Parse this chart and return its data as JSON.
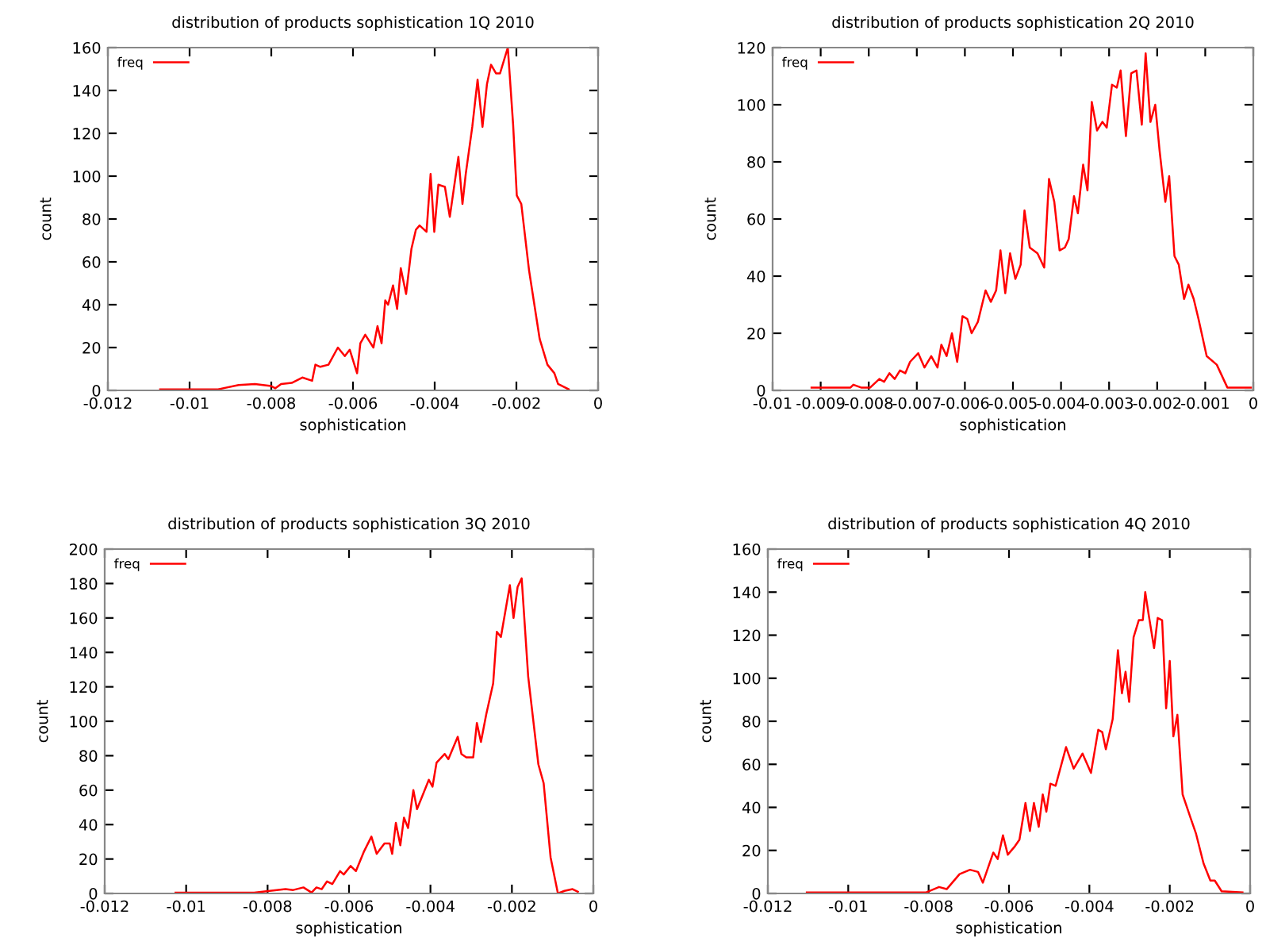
{
  "chart_data": [
    {
      "type": "line",
      "title": "distribution of products sophistication 1Q 2010",
      "xlabel": "sophistication",
      "ylabel": "count",
      "xlim": [
        -0.012,
        0
      ],
      "ylim": [
        0,
        160
      ],
      "xticks": [
        -0.012,
        -0.01,
        -0.008,
        -0.006,
        -0.004,
        -0.002,
        0
      ],
      "yticks": [
        0,
        20,
        40,
        60,
        80,
        100,
        120,
        140,
        160
      ],
      "legend": "top left",
      "grid": false,
      "series": [
        {
          "name": "freq",
          "color": "#ff0000",
          "x": [
            -0.01072,
            -0.0093,
            -0.0088,
            -0.0084,
            -0.008,
            -0.0079,
            -0.00776,
            -0.0075,
            -0.00724,
            -0.007,
            -0.00692,
            -0.0068,
            -0.0066,
            -0.00637,
            -0.0062,
            -0.00608,
            -0.0059,
            -0.00582,
            -0.0057,
            -0.0055,
            -0.0054,
            -0.0053,
            -0.00521,
            -0.00514,
            -0.00502,
            -0.00492,
            -0.00483,
            -0.0047,
            -0.00457,
            -0.00446,
            -0.00437,
            -0.0042,
            -0.0041,
            -0.00401,
            -0.00391,
            -0.00375,
            -0.00363,
            -0.00342,
            -0.00332,
            -0.00324,
            -0.00308,
            -0.00295,
            -0.00283,
            -0.00272,
            -0.00262,
            -0.0025,
            -0.0024,
            -0.00221,
            -0.00208,
            -0.00199,
            -0.00188,
            -0.00169,
            -0.00143,
            -0.00124,
            -0.00107,
            -0.00098,
            -0.00072
          ],
          "values": [
            0.5,
            0.5,
            2.5,
            3,
            2,
            1,
            3,
            3.5,
            6,
            4.5,
            12,
            11,
            12,
            20,
            16,
            19,
            8,
            22,
            26,
            20,
            30,
            22,
            42,
            40,
            49,
            38,
            57,
            45,
            66,
            75,
            77,
            74,
            101,
            74,
            96,
            95,
            81,
            109,
            87,
            101,
            123,
            145,
            123,
            143,
            152,
            148,
            148,
            160,
            124,
            91,
            87,
            56,
            24,
            12,
            8,
            3,
            0.5
          ]
        }
      ]
    },
    {
      "type": "line",
      "title": "distribution of products sophistication 2Q 2010",
      "xlabel": "sophistication",
      "ylabel": "count",
      "xlim": [
        -0.01,
        0
      ],
      "ylim": [
        0,
        120
      ],
      "xticks": [
        -0.01,
        -0.009,
        -0.008,
        -0.007,
        -0.006,
        -0.005,
        -0.004,
        -0.003,
        -0.002,
        -0.001,
        0
      ],
      "yticks": [
        0,
        20,
        40,
        60,
        80,
        100,
        120
      ],
      "legend": "top left",
      "grid": false,
      "series": [
        {
          "name": "freq",
          "color": "#ff0000",
          "x": [
            -0.00919,
            -0.00838,
            -0.00832,
            -0.00816,
            -0.00797,
            -0.00778,
            -0.00768,
            -0.00757,
            -0.00746,
            -0.00735,
            -0.00724,
            -0.00714,
            -0.00697,
            -0.00684,
            -0.0067,
            -0.00657,
            -0.00649,
            -0.00638,
            -0.00627,
            -0.00616,
            -0.00605,
            -0.00595,
            -0.00586,
            -0.00573,
            -0.00557,
            -0.00546,
            -0.00535,
            -0.00526,
            -0.00516,
            -0.00506,
            -0.00495,
            -0.00484,
            -0.00476,
            -0.00465,
            -0.00449,
            -0.00435,
            -0.00425,
            -0.00414,
            -0.00403,
            -0.00392,
            -0.00384,
            -0.00373,
            -0.00365,
            -0.00354,
            -0.00345,
            -0.00336,
            -0.00325,
            -0.00314,
            -0.00305,
            -0.00294,
            -0.00284,
            -0.00276,
            -0.00265,
            -0.00254,
            -0.00243,
            -0.00232,
            -0.00224,
            -0.00214,
            -0.00204,
            -0.00195,
            -0.00183,
            -0.00175,
            -0.00164,
            -0.00155,
            -0.00144,
            -0.00135,
            -0.00124,
            -0.00114,
            -0.00097,
            -0.00076,
            -0.00054,
            -5e-05
          ],
          "values": [
            1,
            1,
            2,
            1,
            1,
            4,
            3,
            6,
            4,
            7,
            6,
            10,
            13,
            8,
            12,
            8,
            16,
            12,
            20,
            10,
            26,
            25,
            20,
            24,
            35,
            31,
            35,
            49,
            34,
            48,
            39,
            44,
            63,
            50,
            48,
            43,
            74,
            66,
            49,
            50,
            53,
            68,
            62,
            79,
            70,
            101,
            91,
            94,
            92,
            107,
            106,
            112,
            89,
            111,
            112,
            93,
            118,
            94,
            100,
            84,
            66,
            75,
            47,
            44,
            32,
            37,
            32,
            25,
            12,
            9,
            1,
            1
          ]
        }
      ]
    },
    {
      "type": "line",
      "title": "distribution of products sophistication 3Q 2010",
      "xlabel": "sophistication",
      "ylabel": "count",
      "xlim": [
        -0.012,
        0
      ],
      "ylim": [
        0,
        200
      ],
      "xticks": [
        -0.012,
        -0.01,
        -0.008,
        -0.006,
        -0.004,
        -0.002,
        0
      ],
      "yticks": [
        0,
        20,
        40,
        60,
        80,
        100,
        120,
        140,
        160,
        180,
        200
      ],
      "legend": "top left",
      "grid": false,
      "series": [
        {
          "name": "freq",
          "color": "#ff0000",
          "x": [
            -0.01026,
            -0.00833,
            -0.00795,
            -0.00756,
            -0.00737,
            -0.00712,
            -0.00692,
            -0.0068,
            -0.00667,
            -0.00654,
            -0.00641,
            -0.00622,
            -0.00613,
            -0.00596,
            -0.00583,
            -0.00564,
            -0.00545,
            -0.00532,
            -0.00513,
            -0.005,
            -0.00494,
            -0.00485,
            -0.00474,
            -0.00465,
            -0.00455,
            -0.00442,
            -0.00433,
            -0.00421,
            -0.00404,
            -0.00395,
            -0.00385,
            -0.00365,
            -0.00356,
            -0.00333,
            -0.00324,
            -0.00312,
            -0.00295,
            -0.00286,
            -0.00276,
            -0.00263,
            -0.00246,
            -0.00237,
            -0.00227,
            -0.00205,
            -0.00196,
            -0.00186,
            -0.00176,
            -0.0016,
            -0.00135,
            -0.00122,
            -0.00105,
            -0.00087,
            -0.00071,
            -0.00051,
            -0.00038
          ],
          "values": [
            0.5,
            0.5,
            1.5,
            2.5,
            2,
            3.5,
            0.5,
            3.5,
            2.5,
            7,
            5.5,
            13,
            11,
            16,
            13,
            24,
            33,
            23,
            29,
            29,
            23,
            41,
            28,
            44,
            38,
            60,
            49,
            56,
            66,
            62,
            76,
            81,
            78,
            91,
            81,
            79,
            79,
            99,
            88,
            104,
            122,
            152,
            149,
            179,
            160,
            178,
            183,
            126,
            75,
            64,
            21,
            0,
            1.5,
            2.5,
            1
          ]
        }
      ]
    },
    {
      "type": "line",
      "title": "distribution of products sophistication 4Q 2010",
      "xlabel": "sophistication",
      "ylabel": "count",
      "xlim": [
        -0.012,
        0
      ],
      "ylim": [
        0,
        160
      ],
      "xticks": [
        -0.012,
        -0.01,
        -0.008,
        -0.006,
        -0.004,
        -0.002,
        0
      ],
      "yticks": [
        0,
        20,
        40,
        60,
        80,
        100,
        120,
        140,
        160
      ],
      "legend": "top left",
      "grid": false,
      "series": [
        {
          "name": "freq",
          "color": "#ff0000",
          "x": [
            -0.01103,
            -0.00806,
            -0.00774,
            -0.00755,
            -0.00723,
            -0.00697,
            -0.00677,
            -0.00665,
            -0.00639,
            -0.00628,
            -0.00615,
            -0.00603,
            -0.00585,
            -0.00574,
            -0.00559,
            -0.00548,
            -0.00538,
            -0.00526,
            -0.00516,
            -0.00507,
            -0.00497,
            -0.00484,
            -0.00458,
            -0.00439,
            -0.00417,
            -0.00396,
            -0.00378,
            -0.00368,
            -0.00359,
            -0.00342,
            -0.00329,
            -0.00319,
            -0.0031,
            -0.00301,
            -0.0029,
            -0.00277,
            -0.00267,
            -0.00261,
            -0.00252,
            -0.00239,
            -0.0023,
            -0.00219,
            -0.00209,
            -0.002,
            -0.00191,
            -0.00181,
            -0.00168,
            -0.00148,
            -0.00135,
            -0.00116,
            -0.00099,
            -0.00088,
            -0.00071,
            -0.00019
          ],
          "values": [
            0.5,
            0.5,
            3,
            2,
            9,
            11,
            10,
            5,
            19,
            16,
            27,
            18,
            22,
            25,
            42,
            29,
            42,
            31,
            46,
            38,
            51,
            50,
            68,
            58,
            65,
            56,
            76,
            75,
            67,
            81,
            113,
            93,
            103,
            89,
            119,
            127,
            127,
            140,
            129,
            114,
            128,
            127,
            86,
            108,
            73,
            83,
            46,
            35,
            28,
            14,
            6,
            6,
            1,
            0.5
          ]
        }
      ]
    }
  ]
}
